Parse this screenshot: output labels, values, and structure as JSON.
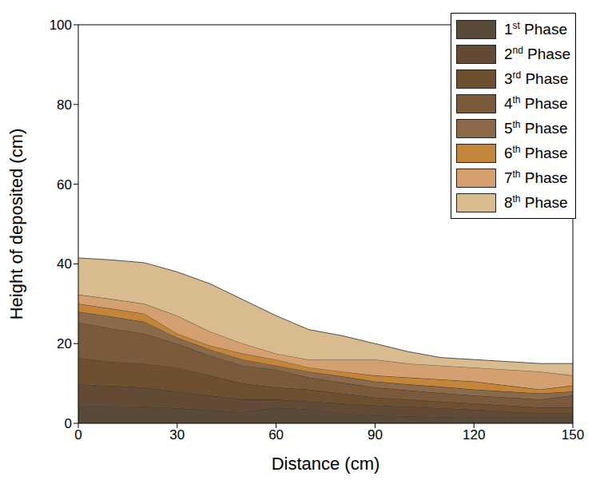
{
  "chart_data": {
    "type": "area",
    "stacked": true,
    "x_label": "Distance (cm)",
    "y_label": "Height of deposited (cm)",
    "x": [
      0,
      10,
      20,
      30,
      40,
      50,
      60,
      70,
      80,
      90,
      100,
      110,
      120,
      130,
      140,
      150
    ],
    "xlim": [
      0,
      150
    ],
    "xticks": [
      0,
      30,
      60,
      90,
      120,
      150
    ],
    "ylim": [
      0,
      100
    ],
    "yticks": [
      0,
      20,
      40,
      60,
      80,
      100
    ],
    "grid": false,
    "legend": "upper right",
    "series": [
      {
        "name": "1st Phase",
        "color": "#5a4a3a",
        "values": [
          4.3,
          4.3,
          4.2,
          3.8,
          3.3,
          2.8,
          4.0,
          3.5,
          2.5,
          2.0,
          1.8,
          1.6,
          1.5,
          1.5,
          1.5,
          1.5
        ]
      },
      {
        "name": "2nd Phase",
        "color": "#634a35",
        "values": [
          5.5,
          5.1,
          4.8,
          4.2,
          3.7,
          3.2,
          2.0,
          2.0,
          2.5,
          2.5,
          2.4,
          2.2,
          2.0,
          1.5,
          1.0,
          1.0
        ]
      },
      {
        "name": "3rd Phase",
        "color": "#6e4f30",
        "values": [
          6.7,
          6.1,
          6.0,
          6.0,
          5.0,
          4.0,
          3.0,
          3.0,
          2.5,
          2.0,
          1.8,
          1.7,
          1.5,
          1.5,
          1.5,
          1.5
        ]
      },
      {
        "name": "4th Phase",
        "color": "#7a5a3a",
        "values": [
          8.8,
          8.3,
          7.5,
          6.0,
          5.0,
          4.5,
          4.5,
          3.0,
          2.7,
          2.5,
          2.3,
          2.1,
          2.0,
          2.0,
          2.0,
          3.0
        ]
      },
      {
        "name": "5th Phase",
        "color": "#8a6a48",
        "values": [
          2.7,
          3.0,
          3.0,
          1.5,
          1.5,
          1.5,
          1.0,
          1.5,
          1.6,
          1.5,
          1.5,
          1.6,
          1.5,
          1.5,
          1.5,
          1.0
        ]
      },
      {
        "name": "6th Phase",
        "color": "#c4853a",
        "values": [
          2.0,
          2.0,
          2.0,
          1.0,
          1.0,
          1.5,
          1.5,
          1.0,
          1.2,
          1.5,
          1.7,
          1.8,
          2.0,
          1.5,
          1.0,
          1.5
        ]
      },
      {
        "name": "7th Phase",
        "color": "#d4a070",
        "values": [
          2.3,
          2.4,
          2.5,
          4.5,
          3.5,
          2.5,
          1.5,
          2.0,
          3.0,
          4.0,
          3.5,
          3.5,
          3.5,
          4.0,
          4.5,
          2.5
        ]
      },
      {
        "name": "8th Phase",
        "color": "#d8bc90",
        "values": [
          9.2,
          9.8,
          10.3,
          11.0,
          12.0,
          11.0,
          9.5,
          7.5,
          6.0,
          4.0,
          3.0,
          2.0,
          2.0,
          2.0,
          2.0,
          3.0
        ]
      }
    ]
  }
}
